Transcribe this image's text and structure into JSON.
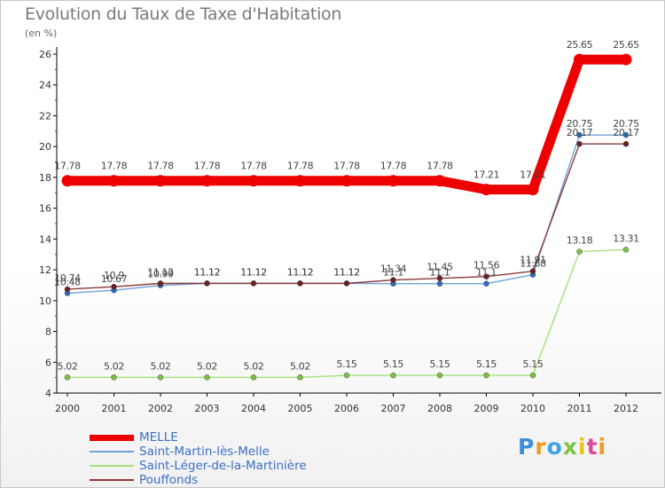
{
  "header": {
    "title": "Evolution du Taux de Taxe d'Habitation",
    "unit": "(en %)"
  },
  "logo": {
    "text": "Proxiti",
    "letter_colors": [
      "#3a8fd9",
      "#f29a1e",
      "#3aa3e0",
      "#7cc243",
      "#e8c21f",
      "#d94a9a",
      "#f29a1e"
    ]
  },
  "chart_data": {
    "type": "line",
    "title": "Evolution du Taux de Taxe d'Habitation",
    "ylabel": "(en %)",
    "xlabel": "",
    "x": [
      "2000",
      "2001",
      "2002",
      "2003",
      "2004",
      "2005",
      "2006",
      "2007",
      "2008",
      "2009",
      "2010",
      "2011",
      "2012"
    ],
    "ylim": [
      4,
      26
    ],
    "yticks": [
      "4",
      "6",
      "8",
      "10",
      "12",
      "14",
      "16",
      "18",
      "20",
      "22",
      "24",
      "26"
    ],
    "grid": false,
    "legend_position": "bottom-left",
    "series": [
      {
        "name": "MELLE",
        "color": "#ee0000",
        "values": [
          17.78,
          17.78,
          17.78,
          17.78,
          17.78,
          17.78,
          17.78,
          17.78,
          17.78,
          17.21,
          17.21,
          25.65,
          25.65
        ],
        "labels": [
          "17.78",
          "17.78",
          "17.78",
          "17.78",
          "17.78",
          "17.78",
          "17.78",
          "17.78",
          "17.78",
          "17.21",
          "17.21",
          "25.65",
          "25.65"
        ]
      },
      {
        "name": "Saint-Martin-lès-Melle",
        "color": "#6ea3d8",
        "marker": "#2a6ebd",
        "values": [
          10.48,
          10.67,
          10.99,
          11.12,
          11.12,
          11.12,
          11.12,
          11.1,
          11.1,
          11.1,
          11.68,
          20.75,
          20.75
        ],
        "labels": [
          "10.48",
          "10.67",
          "10.99",
          "11.12",
          "11.12",
          "11.12",
          "11.12",
          "11.1",
          "11.1",
          "11.1",
          "11.68",
          "20.75",
          "20.75"
        ]
      },
      {
        "name": "Saint-Léger-de-la-Martinière",
        "color": "#a6e07a",
        "marker": "#7cc243",
        "values": [
          5.02,
          5.02,
          5.02,
          5.02,
          5.02,
          5.02,
          5.15,
          5.15,
          5.15,
          5.15,
          5.15,
          13.18,
          13.31
        ],
        "labels": [
          "5.02",
          "5.02",
          "5.02",
          "5.02",
          "5.02",
          "5.02",
          "5.15",
          "5.15",
          "5.15",
          "5.15",
          "5.15",
          "13.18",
          "13.31"
        ]
      },
      {
        "name": "Pouffonds",
        "color": "#8a3a3a",
        "marker": "#6b1f1f",
        "values": [
          10.74,
          10.9,
          11.12,
          11.12,
          11.12,
          11.12,
          11.12,
          11.34,
          11.45,
          11.56,
          11.91,
          20.17,
          20.17
        ],
        "labels": [
          "10.74",
          "10.9",
          "11.12",
          "11.12",
          "11.12",
          "11.12",
          "11.12",
          "11.34",
          "11.45",
          "11.56",
          "11.91",
          "20.17",
          "20.17"
        ]
      }
    ]
  }
}
